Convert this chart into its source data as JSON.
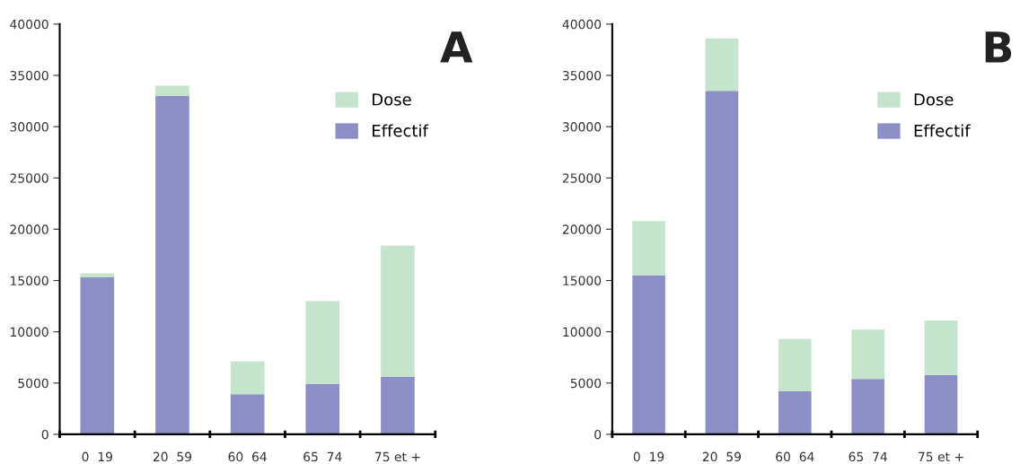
{
  "chart_data": [
    {
      "type": "bar",
      "title": "A",
      "stacked": true,
      "categories": [
        "0  19",
        "20  59",
        "60  64",
        "65  74",
        "75 et +"
      ],
      "series": [
        {
          "name": "Effectif",
          "color": "#8b8fc5",
          "values": [
            15300,
            33000,
            3900,
            4900,
            5600
          ]
        },
        {
          "name": "Dose",
          "color": "#c5e4cc",
          "values": [
            400,
            1000,
            3200,
            8100,
            12800
          ]
        }
      ],
      "ylim": [
        0,
        40000
      ],
      "yticks": [
        0,
        5000,
        10000,
        15000,
        20000,
        25000,
        30000,
        35000,
        40000
      ],
      "grid": false,
      "legend": "top right"
    },
    {
      "type": "bar",
      "title": "B",
      "stacked": true,
      "categories": [
        "0  19",
        "20  59",
        "60  64",
        "65  74",
        "75 et +"
      ],
      "series": [
        {
          "name": "Effectif",
          "color": "#8b8fc5",
          "values": [
            15500,
            33500,
            4200,
            5400,
            5800
          ]
        },
        {
          "name": "Dose",
          "color": "#c5e4cc",
          "values": [
            5300,
            5100,
            5100,
            4800,
            5300
          ]
        }
      ],
      "ylim": [
        0,
        40000
      ],
      "yticks": [
        0,
        5000,
        10000,
        15000,
        20000,
        25000,
        30000,
        35000,
        40000
      ],
      "grid": false,
      "legend": "top right"
    }
  ]
}
